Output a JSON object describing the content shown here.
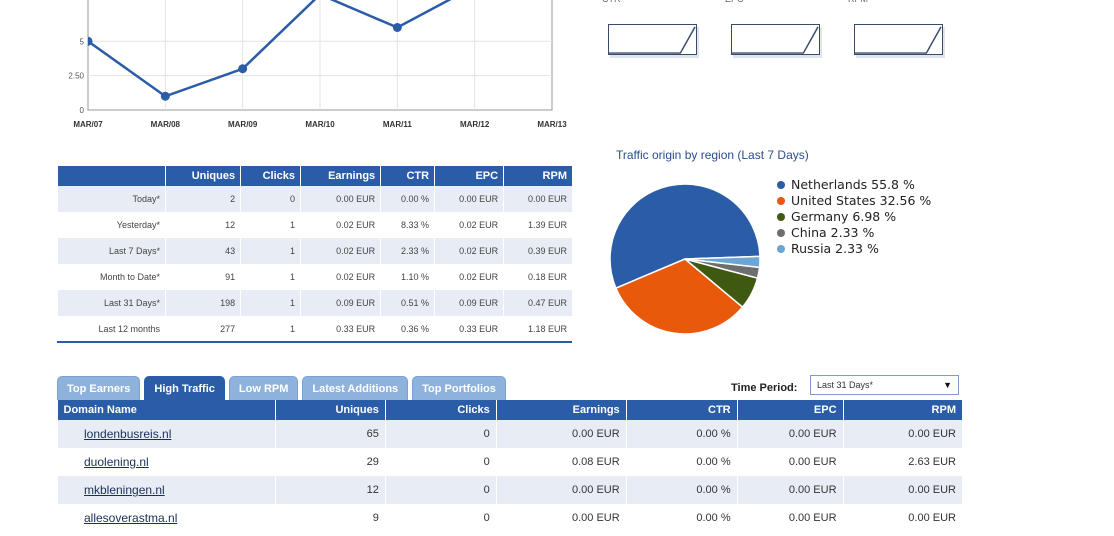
{
  "chart_data": [
    {
      "type": "line",
      "x": [
        "MAR/07",
        "MAR/08",
        "MAR/09",
        "MAR/10",
        "MAR/11",
        "MAR/12",
        "MAR/13"
      ],
      "values": [
        5,
        1,
        3,
        8.4,
        6,
        9,
        null
      ],
      "yticks": [
        "0",
        "2.50",
        "5"
      ],
      "ylim": [
        0,
        8
      ],
      "color": "#2b5ca8"
    },
    {
      "type": "pie",
      "title": "Traffic origin by region (Last 7 Days)",
      "legend_placement": "right",
      "slices": [
        {
          "label": "Netherlands 55.8 %",
          "value": 55.8,
          "color": "#2b5ca8"
        },
        {
          "label": "United States 32.56 %",
          "value": 32.56,
          "color": "#e8590c"
        },
        {
          "label": "Germany 6.98 %",
          "value": 6.98,
          "color": "#3f5a10"
        },
        {
          "label": "China 2.33 %",
          "value": 2.33,
          "color": "#6e6e6e"
        },
        {
          "label": "Russia 2.33 %",
          "value": 2.33,
          "color": "#6aa6d6"
        }
      ]
    }
  ],
  "sparklines": [
    {
      "label": "CTR"
    },
    {
      "label": "EPC"
    },
    {
      "label": "RPM"
    }
  ],
  "summary": {
    "headers": [
      "",
      "Uniques",
      "Clicks",
      "Earnings",
      "CTR",
      "EPC",
      "RPM"
    ],
    "rows": [
      [
        "Today*",
        "2",
        "0",
        "0.00 EUR",
        "0.00 %",
        "0.00 EUR",
        "0.00 EUR"
      ],
      [
        "Yesterday*",
        "12",
        "1",
        "0.02 EUR",
        "8.33 %",
        "0.02 EUR",
        "1.39 EUR"
      ],
      [
        "Last 7 Days*",
        "43",
        "1",
        "0.02 EUR",
        "2.33 %",
        "0.02 EUR",
        "0.39 EUR"
      ],
      [
        "Month to Date*",
        "91",
        "1",
        "0.02 EUR",
        "1.10 %",
        "0.02 EUR",
        "0.18 EUR"
      ],
      [
        "Last 31 Days*",
        "198",
        "1",
        "0.09 EUR",
        "0.51 %",
        "0.09 EUR",
        "0.47 EUR"
      ],
      [
        "Last 12 months",
        "277",
        "1",
        "0.33 EUR",
        "0.36 %",
        "0.33 EUR",
        "1.18 EUR"
      ]
    ]
  },
  "tabs": [
    "Top Earners",
    "High Traffic",
    "Low RPM",
    "Latest Additions",
    "Top Portfolios"
  ],
  "active_tab": 1,
  "period": {
    "label": "Time Period:",
    "value": "Last 31 Days*",
    "arrow": "▼"
  },
  "domains": {
    "headers": [
      "Domain Name",
      "Uniques",
      "Clicks",
      "Earnings",
      "CTR",
      "EPC",
      "RPM"
    ],
    "rows": [
      [
        "londenbusreis.nl",
        "65",
        "0",
        "0.00 EUR",
        "0.00 %",
        "0.00 EUR",
        "0.00 EUR"
      ],
      [
        "duolening.nl",
        "29",
        "0",
        "0.08 EUR",
        "0.00 %",
        "0.00 EUR",
        "2.63 EUR"
      ],
      [
        "mkbleningen.nl",
        "12",
        "0",
        "0.00 EUR",
        "0.00 %",
        "0.00 EUR",
        "0.00 EUR"
      ],
      [
        "allesoverastma.nl",
        "9",
        "0",
        "0.00 EUR",
        "0.00 %",
        "0.00 EUR",
        "0.00 EUR"
      ]
    ]
  }
}
